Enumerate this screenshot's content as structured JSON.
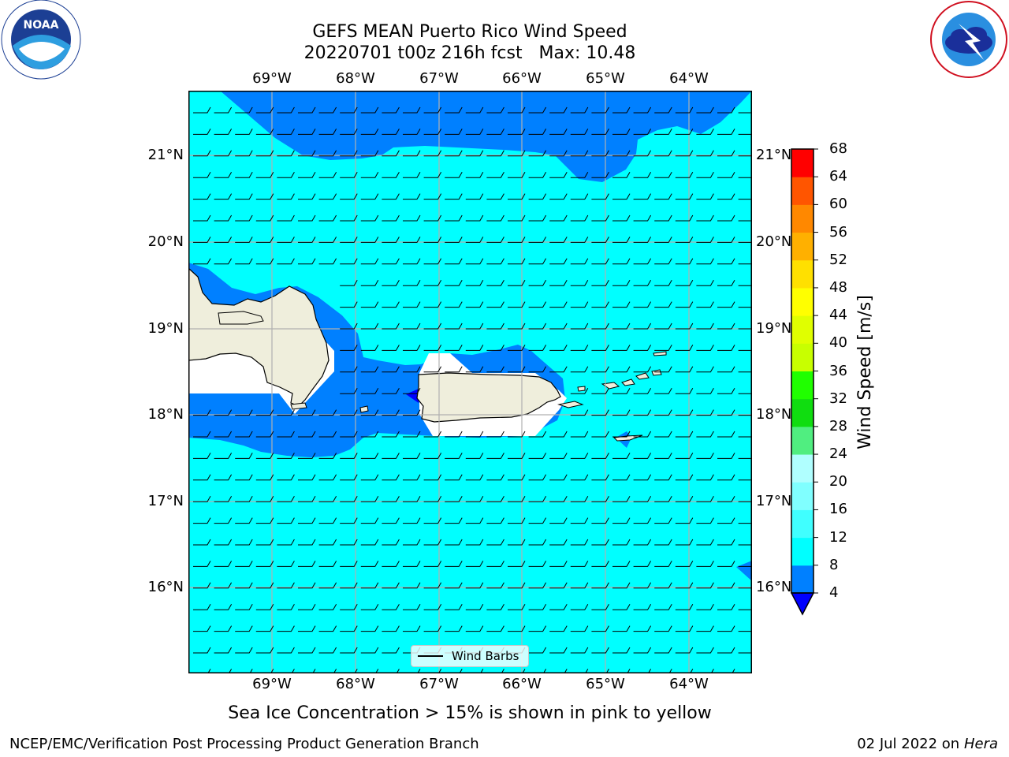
{
  "header": {
    "title_line1": "GEFS MEAN Puerto Rico Wind Speed",
    "title_line2": "20220701 t00z 216h fcst   Max: 10.48"
  },
  "logos": {
    "left": {
      "icon": "noaa-logo",
      "text": "NOAA",
      "ring_text": "NATIONAL OCEANIC AND ATMOSPHERIC ADMINISTRATION · U.S. DEPARTMENT OF COMMERCE"
    },
    "right": {
      "icon": "nws-logo",
      "ring_text": "NATIONAL WEATHER SERVICE"
    }
  },
  "map": {
    "lon_ticks": [
      "69°W",
      "68°W",
      "67°W",
      "66°W",
      "65°W",
      "64°W"
    ],
    "lat_ticks": [
      "21°N",
      "20°N",
      "19°N",
      "18°N",
      "17°N",
      "16°N"
    ],
    "colors": {
      "sea_8_12": "#00ffff",
      "sea_4_8": "#0080ff",
      "sea_below_4": "#0000ff",
      "land": "#efeedc",
      "grid": "#b0b0b0"
    },
    "legend": {
      "label": "Wind Barbs"
    }
  },
  "colorbar": {
    "title": "Wind Speed [m/s]",
    "ticks": [
      "4",
      "8",
      "12",
      "16",
      "20",
      "24",
      "28",
      "32",
      "36",
      "40",
      "44",
      "48",
      "52",
      "56",
      "60",
      "64",
      "68"
    ],
    "colors": [
      "#0080ff",
      "#00ffff",
      "#40ffff",
      "#80ffff",
      "#b0ffff",
      "#50ee80",
      "#10dd10",
      "#20ff00",
      "#c8ff00",
      "#e0ff00",
      "#ffff00",
      "#ffe000",
      "#ffb000",
      "#ff8800",
      "#ff5500",
      "#ff2800",
      "#ff0000"
    ],
    "under_color": "#0000ff"
  },
  "caption": "Sea Ice Concentration > 15% is shown in pink to yellow",
  "footer": {
    "left": "NCEP/EMC/Verification Post Processing Product Generation Branch",
    "date": "02 Jul 2022 on ",
    "system": "Hera"
  }
}
